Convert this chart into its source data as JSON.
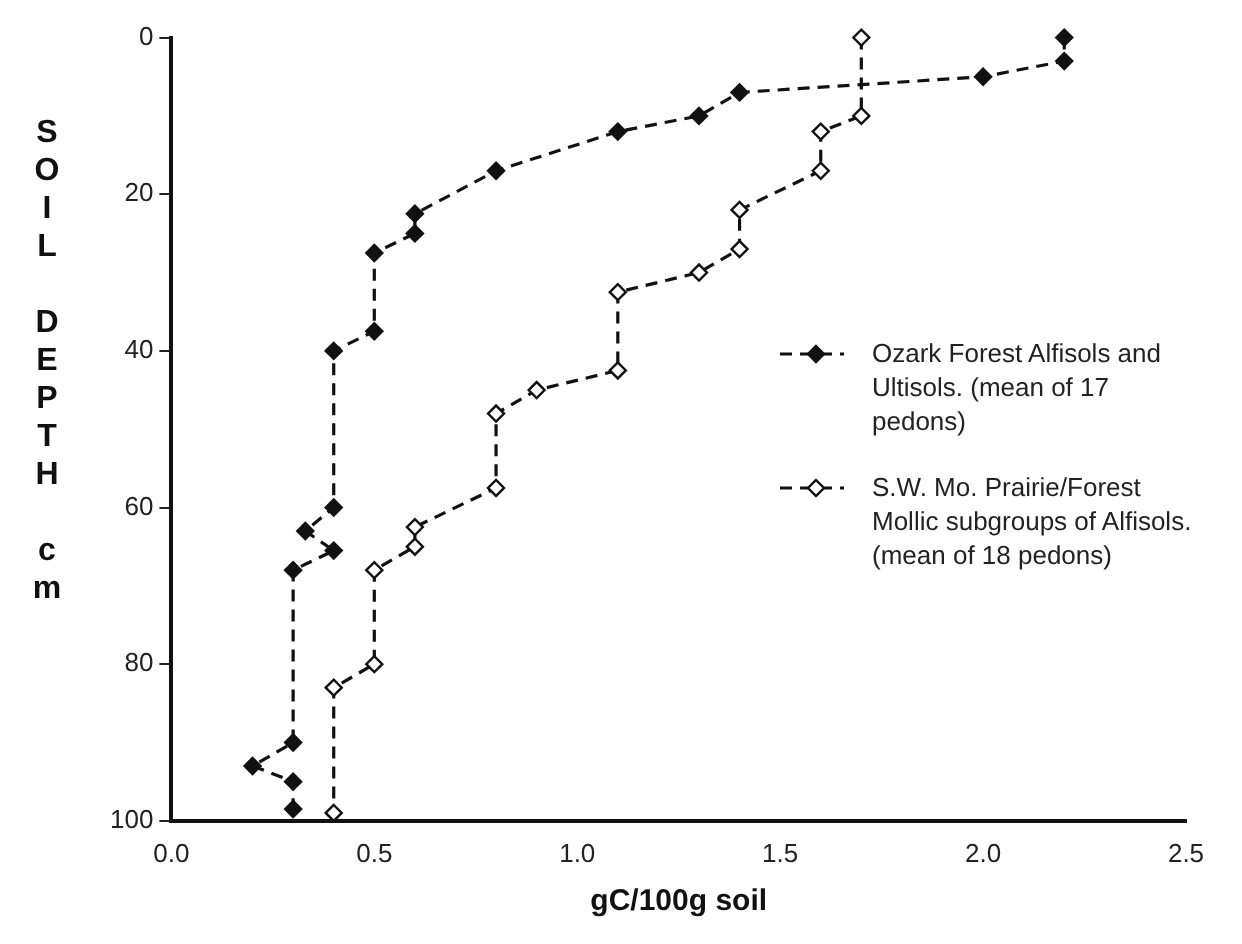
{
  "chart_data": {
    "type": "line",
    "xlabel": "gC/100g soil",
    "ylabel": "SOIL DEPTH cm",
    "xlim": [
      0,
      2.5
    ],
    "xticks": [
      {
        "value": 0,
        "label": "0.0"
      },
      0.5,
      {
        "value": 1,
        "label": "1.0"
      },
      1.5,
      {
        "value": 2,
        "label": "2.0"
      },
      2.5
    ],
    "ylim": [
      100,
      0
    ],
    "yticks": [
      0,
      20,
      40,
      60,
      80,
      100
    ],
    "grid": false,
    "legend": "right",
    "marker": "diamond",
    "line_style": "dashed",
    "series": [
      {
        "name": "Ozark Forest Alfisols and Ultisols. (mean of 17 pedons)",
        "color": "#111111",
        "x": [
          2.2,
          2.2,
          2.0,
          1.4,
          1.3,
          1.1,
          0.8,
          0.6,
          0.6,
          0.5,
          0.5,
          0.4,
          0.4,
          0.33,
          0.4,
          0.3,
          0.3,
          0.2,
          0.3,
          0.3
        ],
        "values": [
          0,
          3,
          5,
          7,
          10,
          12,
          17,
          22.5,
          25,
          27.5,
          37.5,
          40,
          60,
          63,
          65.5,
          68,
          90,
          93,
          95,
          98.5
        ]
      },
      {
        "name": "S.W. Mo. Prairie/Forest Mollic subgroups of Alfisols. (mean of 18 pedons)",
        "color": "#111111",
        "x": [
          1.7,
          1.7,
          1.6,
          1.6,
          1.4,
          1.4,
          1.3,
          1.1,
          1.1,
          0.9,
          0.8,
          0.8,
          0.6,
          0.6,
          0.5,
          0.5,
          0.4,
          0.4
        ],
        "values": [
          0,
          10,
          12,
          17,
          22,
          27,
          30,
          32.5,
          42.5,
          45,
          48,
          57.5,
          62.5,
          65,
          68,
          80,
          83,
          99
        ]
      }
    ]
  }
}
